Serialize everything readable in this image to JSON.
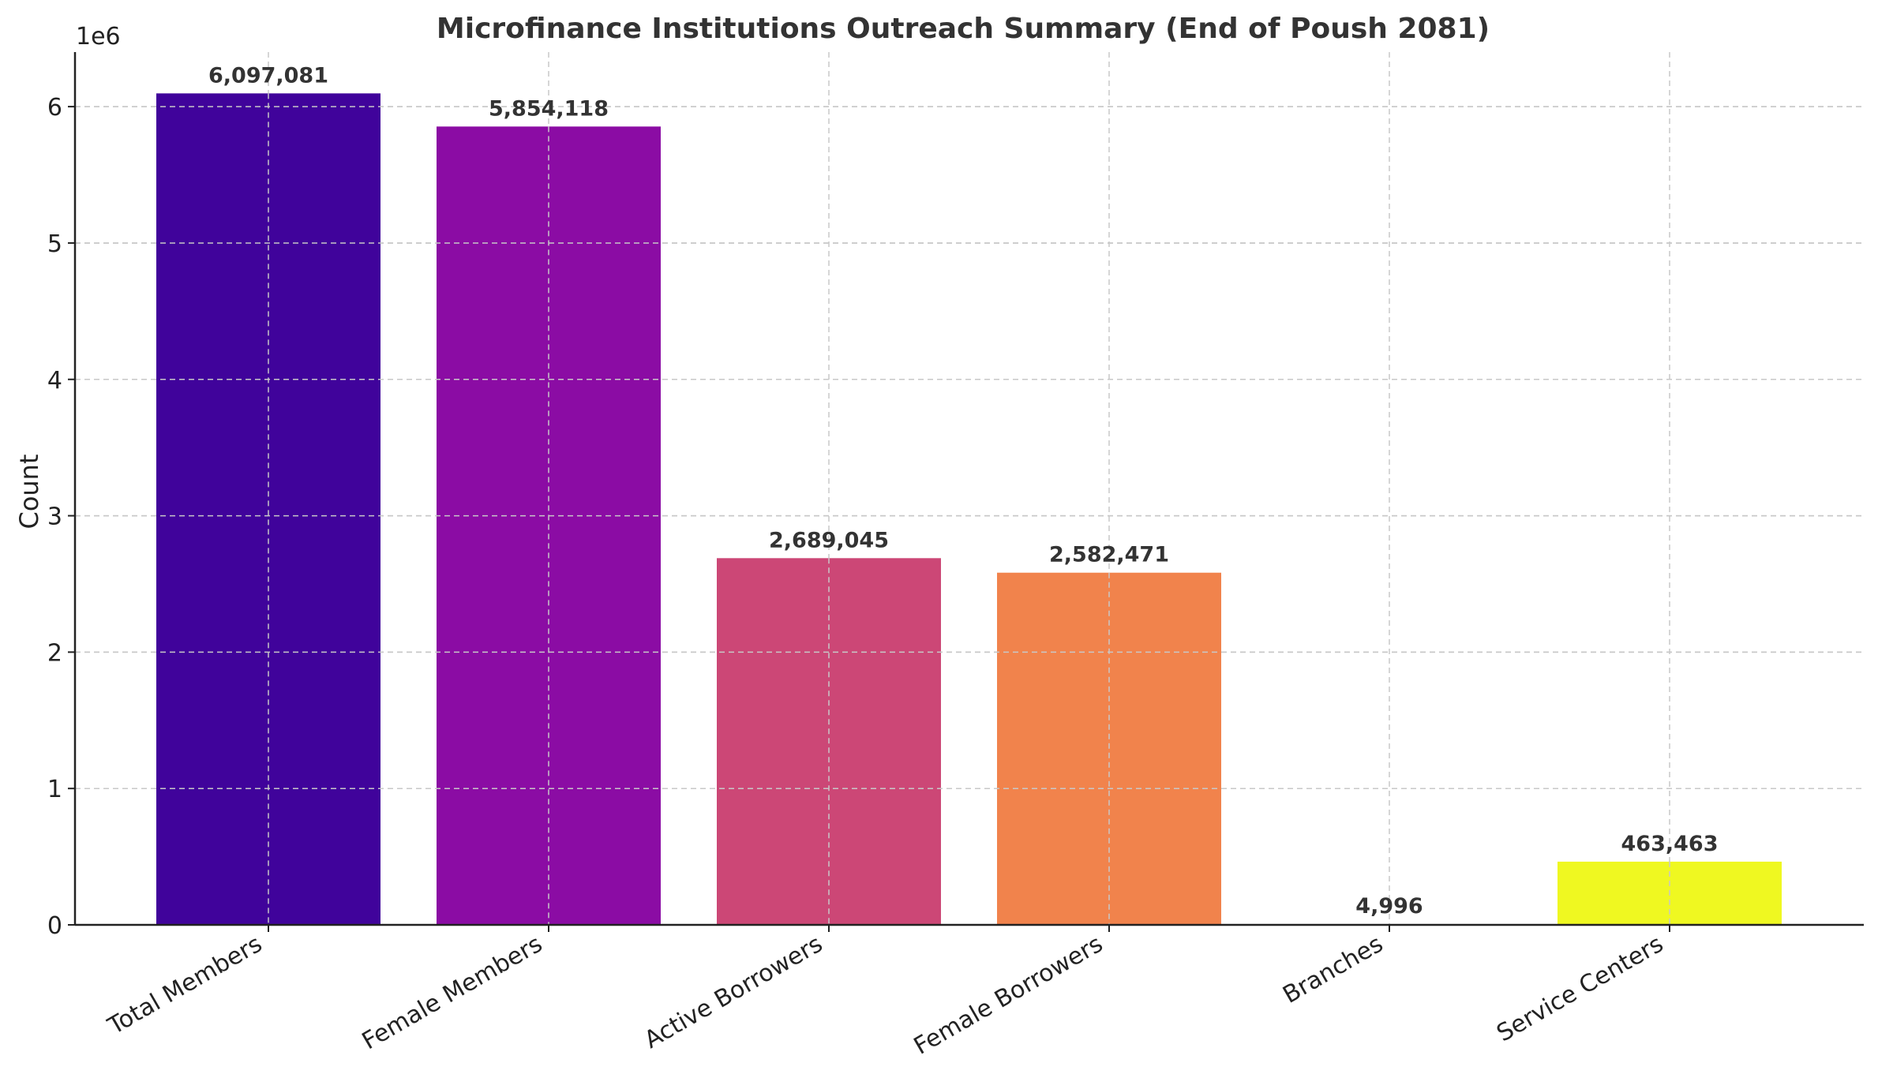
{
  "chart_data": {
    "type": "bar",
    "title": "Microfinance Institutions Outreach Summary (End of Poush 2081)",
    "xlabel": "",
    "ylabel": "Count",
    "y_scale_label": "1e6",
    "ylim": [
      0,
      6400000
    ],
    "grid": true,
    "categories": [
      "Total Members",
      "Female Members",
      "Active Borrowers",
      "Female Borrowers",
      "Branches",
      "Service Centers"
    ],
    "values": [
      6097081,
      5854118,
      2689045,
      2582471,
      4996,
      463463
    ],
    "value_labels": [
      "6,097,081",
      "5,854,118",
      "2,689,045",
      "2,582,471",
      "4,996",
      "463,463"
    ],
    "colors": [
      "#40039b",
      "#8b0ca4",
      "#cc4776",
      "#f1834c",
      "#fce825",
      "#eff821"
    ],
    "y_ticks": [
      0,
      1000000,
      2000000,
      3000000,
      4000000,
      5000000,
      6000000
    ],
    "y_tick_labels": [
      "0",
      "1",
      "2",
      "3",
      "4",
      "5",
      "6"
    ]
  }
}
